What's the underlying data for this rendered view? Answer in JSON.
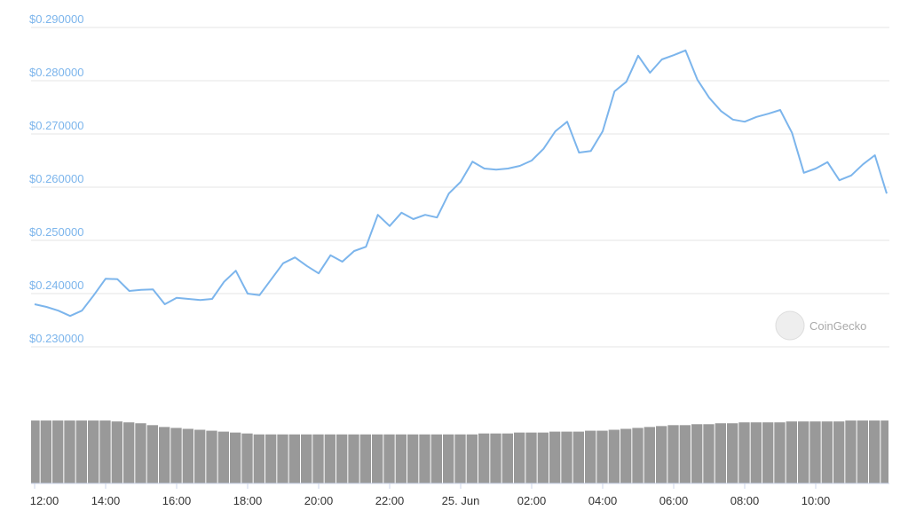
{
  "chart_data": {
    "type": "line",
    "x": [
      "12:00",
      "12:20",
      "12:40",
      "13:00",
      "13:20",
      "13:40",
      "14:00",
      "14:20",
      "14:40",
      "15:00",
      "15:20",
      "15:40",
      "16:00",
      "16:20",
      "16:40",
      "17:00",
      "17:20",
      "17:40",
      "18:00",
      "18:20",
      "18:40",
      "19:00",
      "19:20",
      "19:40",
      "20:00",
      "20:20",
      "20:40",
      "21:00",
      "21:20",
      "21:40",
      "22:00",
      "22:20",
      "22:40",
      "23:00",
      "23:20",
      "23:40",
      "00:00",
      "00:20",
      "00:40",
      "01:00",
      "01:20",
      "01:40",
      "02:00",
      "02:20",
      "02:40",
      "03:00",
      "03:20",
      "03:40",
      "04:00",
      "04:20",
      "04:40",
      "05:00",
      "05:20",
      "05:40",
      "06:00",
      "06:20",
      "06:40",
      "07:00",
      "07:20",
      "07:40",
      "08:00",
      "08:20",
      "08:40",
      "09:00",
      "09:20",
      "09:40",
      "10:00",
      "10:20",
      "10:40",
      "11:00",
      "11:20",
      "11:40",
      "12:00"
    ],
    "series": [
      {
        "color": "#7cb5ec",
        "values": [
          0.238,
          0.2375,
          0.2368,
          0.2358,
          0.2368,
          0.2397,
          0.2428,
          0.2427,
          0.2405,
          0.2407,
          0.2408,
          0.238,
          0.2392,
          0.239,
          0.2388,
          0.239,
          0.2422,
          0.2443,
          0.24,
          0.2397,
          0.2427,
          0.2457,
          0.2468,
          0.2452,
          0.2438,
          0.2472,
          0.246,
          0.248,
          0.2488,
          0.2548,
          0.2527,
          0.2552,
          0.254,
          0.2548,
          0.2543,
          0.2588,
          0.261,
          0.2648,
          0.2635,
          0.2633,
          0.2635,
          0.264,
          0.265,
          0.2672,
          0.2705,
          0.2723,
          0.2665,
          0.2668,
          0.2705,
          0.278,
          0.2798,
          0.2847,
          0.2815,
          0.284,
          0.2848,
          0.2857,
          0.2802,
          0.2768,
          0.2743,
          0.2727,
          0.2723,
          0.2732,
          0.2738,
          0.2745,
          0.2702,
          0.2627,
          0.2635,
          0.2647,
          0.2613,
          0.2622,
          0.2643,
          0.266,
          0.2588
        ]
      }
    ],
    "ylim": [
      0.23,
      0.29
    ],
    "yticks": [
      {
        "value": 0.23,
        "label": "$0.230000"
      },
      {
        "value": 0.24,
        "label": "$0.240000"
      },
      {
        "value": 0.25,
        "label": "$0.250000"
      },
      {
        "value": 0.26,
        "label": "$0.260000"
      },
      {
        "value": 0.27,
        "label": "$0.270000"
      },
      {
        "value": 0.28,
        "label": "$0.280000"
      },
      {
        "value": 0.29,
        "label": "$0.290000"
      }
    ],
    "xticks": [
      "12:00",
      "14:00",
      "16:00",
      "18:00",
      "20:00",
      "22:00",
      {
        "value": "00:00",
        "label": "25. Jun"
      },
      "02:00",
      "04:00",
      "06:00",
      "08:00",
      "10:00"
    ],
    "grid": true,
    "volume": {
      "color": "#999999",
      "ylim": [
        0,
        70
      ],
      "values": [
        68,
        68,
        68,
        68,
        68,
        68,
        68,
        67,
        66,
        65,
        63,
        61,
        60,
        59,
        58,
        57,
        56,
        55,
        54,
        53,
        53,
        53,
        53,
        53,
        53,
        53,
        53,
        53,
        53,
        53,
        53,
        53,
        53,
        53,
        53,
        53,
        53,
        53,
        54,
        54,
        54,
        55,
        55,
        55,
        56,
        56,
        56,
        57,
        57,
        58,
        59,
        60,
        61,
        62,
        63,
        63,
        64,
        64,
        65,
        65,
        66,
        66,
        66,
        66,
        67,
        67,
        67,
        67,
        67,
        68,
        68,
        68,
        68
      ]
    },
    "watermark": "CoinGecko"
  }
}
